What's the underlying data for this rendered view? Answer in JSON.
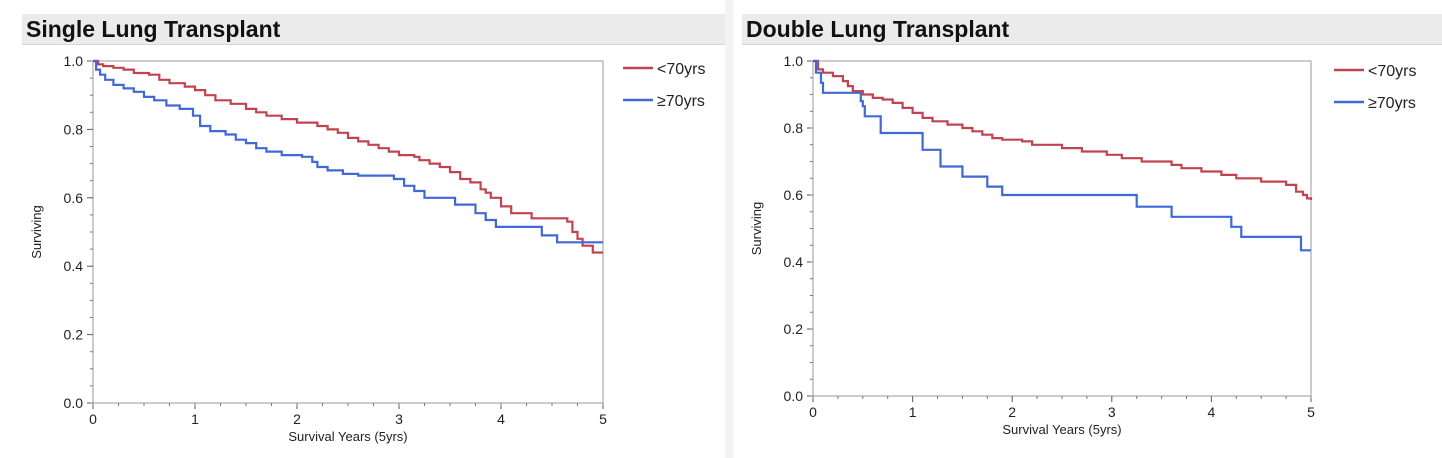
{
  "chart_data": [
    {
      "type": "line",
      "title": "Single Lung Transplant",
      "xlabel": "Survival Years (5yrs)",
      "ylabel": "Surviving",
      "xlim": [
        0,
        5
      ],
      "ylim": [
        0,
        1
      ],
      "xticks": [
        "0",
        "1",
        "2",
        "3",
        "4",
        "5"
      ],
      "yticks": [
        "0.0",
        "0.2",
        "0.4",
        "0.6",
        "0.8",
        "1.0"
      ],
      "legend_position": "right",
      "grid": false,
      "step": true,
      "series": [
        {
          "name": "<70yrs",
          "color": "#c0444f",
          "points": [
            [
              0,
              1.0
            ],
            [
              0.05,
              0.99
            ],
            [
              0.1,
              0.985
            ],
            [
              0.2,
              0.98
            ],
            [
              0.3,
              0.975
            ],
            [
              0.4,
              0.965
            ],
            [
              0.55,
              0.96
            ],
            [
              0.65,
              0.945
            ],
            [
              0.75,
              0.935
            ],
            [
              0.9,
              0.925
            ],
            [
              1.0,
              0.915
            ],
            [
              1.1,
              0.9
            ],
            [
              1.2,
              0.885
            ],
            [
              1.35,
              0.875
            ],
            [
              1.5,
              0.86
            ],
            [
              1.6,
              0.85
            ],
            [
              1.7,
              0.84
            ],
            [
              1.85,
              0.83
            ],
            [
              2.0,
              0.82
            ],
            [
              2.2,
              0.81
            ],
            [
              2.3,
              0.8
            ],
            [
              2.4,
              0.79
            ],
            [
              2.5,
              0.775
            ],
            [
              2.6,
              0.765
            ],
            [
              2.7,
              0.755
            ],
            [
              2.8,
              0.745
            ],
            [
              2.9,
              0.735
            ],
            [
              3.0,
              0.725
            ],
            [
              3.15,
              0.72
            ],
            [
              3.2,
              0.71
            ],
            [
              3.3,
              0.7
            ],
            [
              3.4,
              0.69
            ],
            [
              3.5,
              0.675
            ],
            [
              3.6,
              0.655
            ],
            [
              3.7,
              0.645
            ],
            [
              3.8,
              0.625
            ],
            [
              3.85,
              0.615
            ],
            [
              3.9,
              0.6
            ],
            [
              4.0,
              0.575
            ],
            [
              4.1,
              0.555
            ],
            [
              4.3,
              0.54
            ],
            [
              4.5,
              0.54
            ],
            [
              4.65,
              0.53
            ],
            [
              4.7,
              0.5
            ],
            [
              4.75,
              0.48
            ],
            [
              4.8,
              0.46
            ],
            [
              4.9,
              0.44
            ],
            [
              5.0,
              0.44
            ]
          ]
        },
        {
          "name": "≥70yrs",
          "color": "#4169d6",
          "points": [
            [
              0,
              1.0
            ],
            [
              0.03,
              0.975
            ],
            [
              0.07,
              0.96
            ],
            [
              0.12,
              0.945
            ],
            [
              0.2,
              0.93
            ],
            [
              0.3,
              0.92
            ],
            [
              0.4,
              0.91
            ],
            [
              0.5,
              0.895
            ],
            [
              0.6,
              0.885
            ],
            [
              0.72,
              0.87
            ],
            [
              0.85,
              0.86
            ],
            [
              0.98,
              0.84
            ],
            [
              1.05,
              0.81
            ],
            [
              1.15,
              0.795
            ],
            [
              1.3,
              0.785
            ],
            [
              1.4,
              0.77
            ],
            [
              1.5,
              0.76
            ],
            [
              1.6,
              0.745
            ],
            [
              1.7,
              0.735
            ],
            [
              1.85,
              0.725
            ],
            [
              2.05,
              0.72
            ],
            [
              2.15,
              0.705
            ],
            [
              2.2,
              0.69
            ],
            [
              2.3,
              0.68
            ],
            [
              2.45,
              0.67
            ],
            [
              2.6,
              0.665
            ],
            [
              2.95,
              0.655
            ],
            [
              3.05,
              0.635
            ],
            [
              3.15,
              0.62
            ],
            [
              3.25,
              0.6
            ],
            [
              3.55,
              0.58
            ],
            [
              3.75,
              0.555
            ],
            [
              3.85,
              0.535
            ],
            [
              3.95,
              0.515
            ],
            [
              4.05,
              0.515
            ],
            [
              4.4,
              0.49
            ],
            [
              4.55,
              0.47
            ],
            [
              4.6,
              0.47
            ],
            [
              5.0,
              0.47
            ]
          ]
        }
      ]
    },
    {
      "type": "line",
      "title": "Double Lung Transplant",
      "xlabel": "Survival Years (5yrs)",
      "ylabel": "Surviving",
      "xlim": [
        0,
        5
      ],
      "ylim": [
        0,
        1
      ],
      "xticks": [
        "0",
        "1",
        "2",
        "3",
        "4",
        "5"
      ],
      "yticks": [
        "0.0",
        "0.2",
        "0.4",
        "0.6",
        "0.8",
        "1.0"
      ],
      "legend_position": "right",
      "grid": false,
      "step": true,
      "series": [
        {
          "name": "<70yrs",
          "color": "#c0444f",
          "points": [
            [
              0,
              1.0
            ],
            [
              0.05,
              0.975
            ],
            [
              0.1,
              0.965
            ],
            [
              0.2,
              0.955
            ],
            [
              0.3,
              0.94
            ],
            [
              0.35,
              0.925
            ],
            [
              0.4,
              0.91
            ],
            [
              0.5,
              0.9
            ],
            [
              0.6,
              0.89
            ],
            [
              0.7,
              0.885
            ],
            [
              0.8,
              0.875
            ],
            [
              0.9,
              0.86
            ],
            [
              1.0,
              0.845
            ],
            [
              1.1,
              0.83
            ],
            [
              1.2,
              0.82
            ],
            [
              1.35,
              0.81
            ],
            [
              1.5,
              0.8
            ],
            [
              1.6,
              0.79
            ],
            [
              1.7,
              0.78
            ],
            [
              1.8,
              0.77
            ],
            [
              1.9,
              0.765
            ],
            [
              2.1,
              0.76
            ],
            [
              2.2,
              0.75
            ],
            [
              2.5,
              0.74
            ],
            [
              2.7,
              0.73
            ],
            [
              2.95,
              0.72
            ],
            [
              3.1,
              0.71
            ],
            [
              3.3,
              0.7
            ],
            [
              3.6,
              0.69
            ],
            [
              3.7,
              0.68
            ],
            [
              3.9,
              0.67
            ],
            [
              4.1,
              0.66
            ],
            [
              4.25,
              0.65
            ],
            [
              4.5,
              0.64
            ],
            [
              4.75,
              0.63
            ],
            [
              4.85,
              0.61
            ],
            [
              4.92,
              0.6
            ],
            [
              4.96,
              0.59
            ],
            [
              5.0,
              0.585
            ]
          ]
        },
        {
          "name": "≥70yrs",
          "color": "#4169d6",
          "points": [
            [
              0,
              1.0
            ],
            [
              0.03,
              0.965
            ],
            [
              0.08,
              0.935
            ],
            [
              0.1,
              0.905
            ],
            [
              0.45,
              0.905
            ],
            [
              0.48,
              0.88
            ],
            [
              0.5,
              0.865
            ],
            [
              0.52,
              0.835
            ],
            [
              0.68,
              0.785
            ],
            [
              1.1,
              0.735
            ],
            [
              1.28,
              0.685
            ],
            [
              1.5,
              0.655
            ],
            [
              1.75,
              0.625
            ],
            [
              1.9,
              0.6
            ],
            [
              3.25,
              0.565
            ],
            [
              3.6,
              0.535
            ],
            [
              4.2,
              0.505
            ],
            [
              4.3,
              0.475
            ],
            [
              4.9,
              0.435
            ],
            [
              5.0,
              0.435
            ]
          ]
        }
      ]
    }
  ]
}
